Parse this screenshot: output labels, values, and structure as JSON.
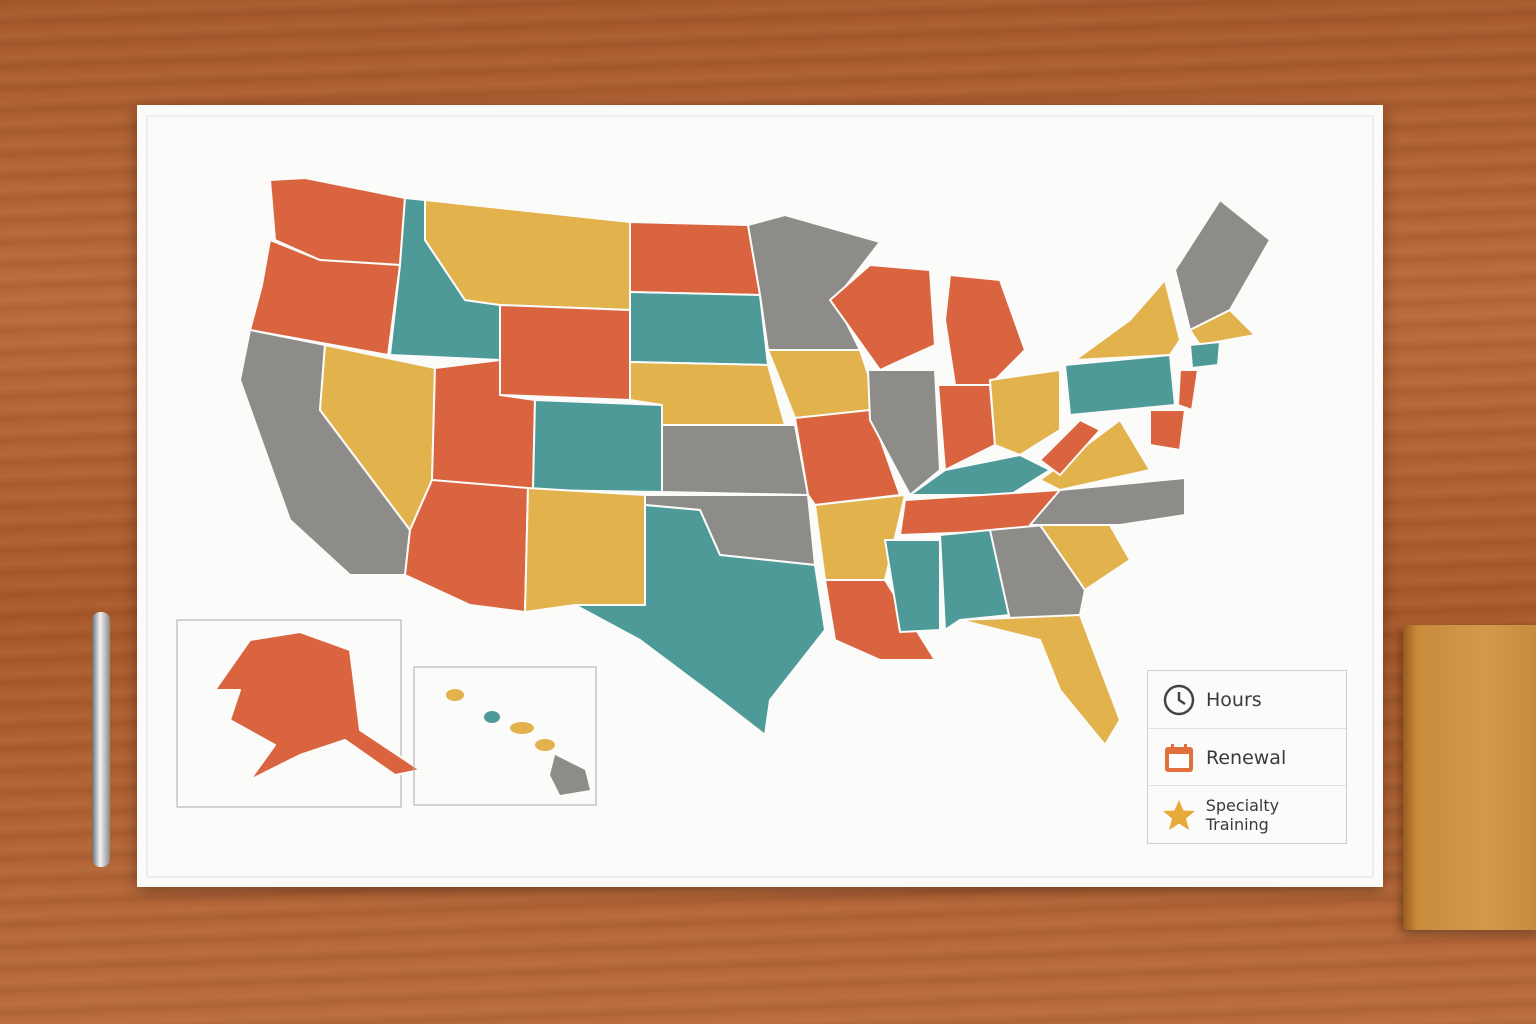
{
  "legend": {
    "items": [
      {
        "label": "Hours"
      },
      {
        "label": "Renewal"
      },
      {
        "label": "Specialty Training"
      }
    ]
  }
}
